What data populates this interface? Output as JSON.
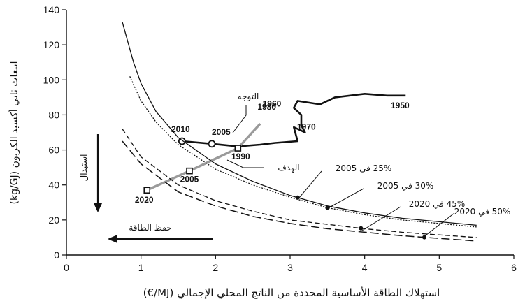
{
  "chart_data": {
    "type": "line",
    "xlabel": "استهلاك الطاقة الأساسية المحددة من الناتج المحلي الإجمالي (MJ/€)",
    "ylabel": "انبعاث ثاني أكسيد الكربون (kg/GJ)",
    "xlim": [
      0,
      6
    ],
    "ylim": [
      0,
      140
    ],
    "x_ticks": [
      "0",
      "1",
      "2",
      "3",
      "4",
      "5",
      "6"
    ],
    "y_ticks": [
      "0",
      "20",
      "40",
      "60",
      "80",
      "100",
      "120",
      "140"
    ],
    "grid": false,
    "series": [
      {
        "name": "التوجه",
        "style": "thick-solid",
        "points": [
          [
            4.55,
            91
          ],
          [
            4.3,
            91
          ],
          [
            4.0,
            92
          ],
          [
            3.6,
            90
          ],
          [
            3.4,
            86
          ],
          [
            3.1,
            88
          ],
          [
            3.05,
            84
          ],
          [
            3.15,
            80
          ],
          [
            3.15,
            74
          ],
          [
            3.2,
            70
          ],
          [
            3.05,
            73
          ],
          [
            3.1,
            65
          ],
          [
            2.8,
            64
          ],
          [
            2.6,
            63
          ],
          [
            2.3,
            62
          ],
          [
            1.95,
            63.5
          ],
          [
            1.55,
            65
          ]
        ],
        "labels": [
          {
            "text": "1950",
            "x": 4.55,
            "y": 91
          },
          {
            "text": "1960",
            "x": 3.05,
            "y": 84
          },
          {
            "text": "1970",
            "x": 3.15,
            "y": 74
          },
          {
            "text": "2005",
            "x": 1.95,
            "y": 63.5
          },
          {
            "text": "2010",
            "x": 1.55,
            "y": 65
          }
        ]
      },
      {
        "name": "الهدف",
        "style": "thick-gray",
        "points": [
          [
            2.6,
            75
          ],
          [
            2.3,
            61
          ],
          [
            1.65,
            48
          ],
          [
            1.08,
            37
          ]
        ],
        "labels": [
          {
            "text": "1980",
            "x": 2.6,
            "y": 75
          },
          {
            "text": "1990",
            "x": 2.3,
            "y": 61
          },
          {
            "text": "2005",
            "x": 1.65,
            "y": 48
          },
          {
            "text": "2020",
            "x": 1.08,
            "y": 37
          }
        ]
      },
      {
        "name": "25% في 2005",
        "style": "solid",
        "points": [
          [
            0.75,
            133
          ],
          [
            0.9,
            110
          ],
          [
            1.0,
            98
          ],
          [
            1.2,
            82
          ],
          [
            1.5,
            67
          ],
          [
            2.0,
            52
          ],
          [
            2.5,
            42
          ],
          [
            3.0,
            34
          ],
          [
            3.5,
            28
          ],
          [
            4.0,
            24
          ],
          [
            4.5,
            21
          ],
          [
            5.0,
            19
          ],
          [
            5.5,
            17
          ]
        ]
      },
      {
        "name": "30% في 2005",
        "style": "dotted",
        "points": [
          [
            0.85,
            102
          ],
          [
            1.0,
            88
          ],
          [
            1.2,
            76
          ],
          [
            1.5,
            63
          ],
          [
            2.0,
            49
          ],
          [
            2.5,
            40
          ],
          [
            3.0,
            33
          ],
          [
            3.5,
            27
          ],
          [
            4.0,
            23
          ],
          [
            4.5,
            20
          ],
          [
            5.0,
            18
          ],
          [
            5.5,
            16
          ]
        ]
      },
      {
        "name": "45% في 2020",
        "style": "dashed",
        "points": [
          [
            0.75,
            72
          ],
          [
            1.0,
            56
          ],
          [
            1.5,
            40
          ],
          [
            2.0,
            31
          ],
          [
            2.5,
            25
          ],
          [
            3.0,
            20
          ],
          [
            3.5,
            17.5
          ],
          [
            4.0,
            15
          ],
          [
            4.5,
            13
          ],
          [
            5.0,
            11.5
          ],
          [
            5.5,
            10
          ]
        ]
      },
      {
        "name": "50% في 2020",
        "style": "long-dashed",
        "points": [
          [
            0.75,
            65
          ],
          [
            1.0,
            52
          ],
          [
            1.5,
            36
          ],
          [
            2.0,
            28
          ],
          [
            2.5,
            22
          ],
          [
            3.0,
            18
          ],
          [
            3.5,
            15
          ],
          [
            4.0,
            13
          ],
          [
            4.5,
            11
          ],
          [
            5.0,
            9.5
          ],
          [
            5.5,
            8
          ]
        ]
      }
    ],
    "annotations": [
      {
        "text": "التوجه"
      },
      {
        "text": "الهدف"
      },
      {
        "text": "25% في 2005"
      },
      {
        "text": "30% في 2005"
      },
      {
        "text": "45% في 2020"
      },
      {
        "text": "50% في 2020"
      },
      {
        "text": "استبدال"
      },
      {
        "text": "حفظ الطاقة"
      }
    ]
  }
}
